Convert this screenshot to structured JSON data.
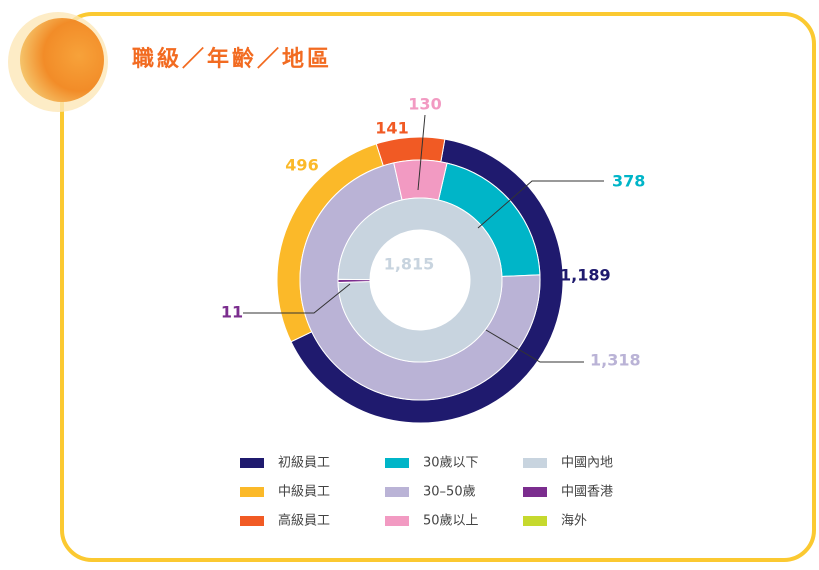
{
  "chart_data": {
    "type": "nested-donut",
    "title": "職級／年齡／地區",
    "rings": [
      {
        "categories": [
          "初級員工",
          "中級員工",
          "高級員工"
        ],
        "colors": [
          "#1f1a6e",
          "#fbb929",
          "#f15a24"
        ],
        "values": [
          1189,
          496,
          141
        ],
        "value_labels": [
          "1,189",
          "496",
          "141"
        ]
      },
      {
        "categories": [
          "30歲以下",
          "30–50歲",
          "50歲以上"
        ],
        "colors": [
          "#00b5c8",
          "#bab3d6",
          "#f29ac2"
        ],
        "values": [
          378,
          1318,
          130
        ],
        "value_labels": [
          "378",
          "1,318",
          "130"
        ]
      },
      {
        "categories": [
          "中國內地",
          "中國香港",
          "海外"
        ],
        "colors": [
          "#c8d4df",
          "#7b2d8e",
          "#c6d92e"
        ],
        "values": [
          1815,
          11,
          0
        ],
        "value_labels": [
          "1,815",
          "11",
          null
        ]
      }
    ]
  }
}
